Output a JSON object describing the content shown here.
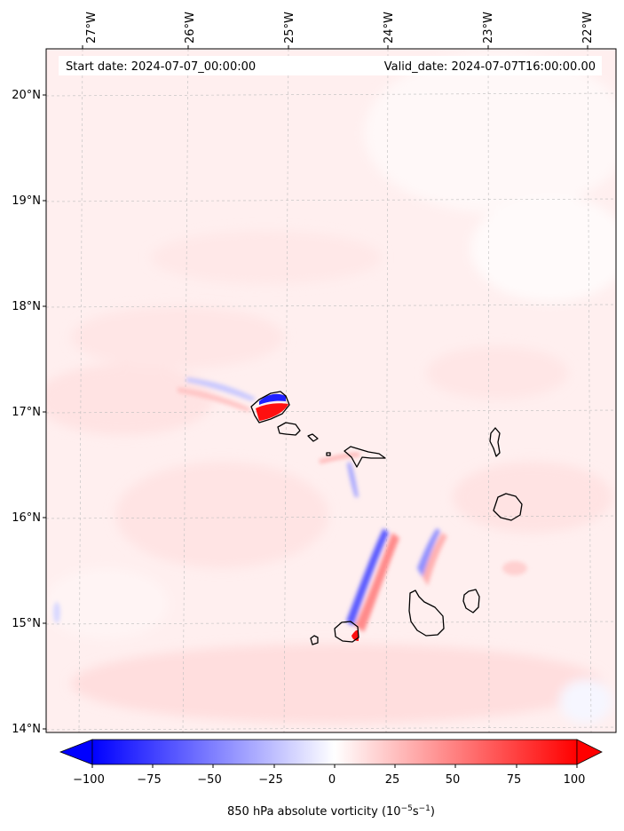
{
  "map": {
    "header": {
      "start_label": "Start date: 2024-07-07_00:00:00",
      "valid_label": "Valid_date: 2024-07-07T16:00:00.00"
    },
    "lon_ticks": [
      "27°W",
      "26°W",
      "25°W",
      "24°W",
      "23°W",
      "22°W"
    ],
    "lat_ticks": [
      "20°N",
      "19°N",
      "18°N",
      "17°N",
      "16°N",
      "15°N",
      "14°N"
    ],
    "lon_range": [
      -27.33,
      -21.7
    ],
    "lat_range": [
      13.95,
      20.42
    ],
    "colorbar": {
      "ticks": [
        "−100",
        "−75",
        "−50",
        "−25",
        "0",
        "25",
        "50",
        "75",
        "100"
      ],
      "min": -100,
      "max": 100,
      "label": "850 hPa absolute vorticity (10$^{-5}$s$^{-1}$)",
      "label_main": "850 hPa absolute vorticity (10",
      "label_exp1": "−5",
      "label_mid": "s",
      "label_exp2": "−1",
      "label_end": ")",
      "colors": {
        "neg": "#0000ff",
        "zero": "#ffffff",
        "pos": "#ff0000"
      }
    },
    "islands": [
      "santo-antao",
      "sao-vicente",
      "santa-luzia",
      "branco",
      "sao-nicolau",
      "sal",
      "boa-vista",
      "maio",
      "santiago",
      "fogo",
      "brava"
    ]
  }
}
